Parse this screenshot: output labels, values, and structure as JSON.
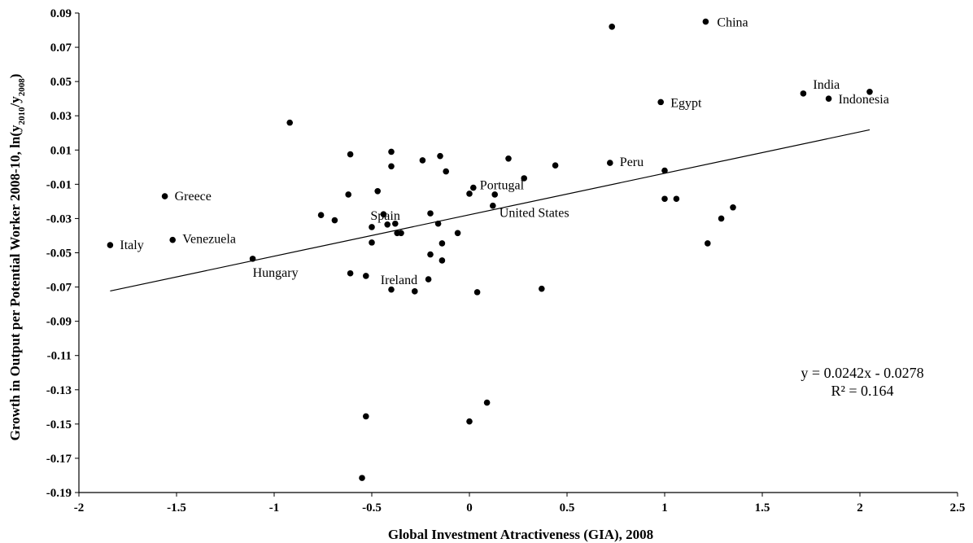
{
  "chart_data": {
    "type": "scatter",
    "title": "",
    "xlabel": "Global Investment Atractiveness (GIA),  2008",
    "ylabel_parts": {
      "main": "Growth in Output per Potential Worker 2008-10, ln(y",
      "sub1": "2010",
      "mid": "/y",
      "sub2": "2008",
      "end": ")"
    },
    "xlim": [
      -2,
      2.5
    ],
    "ylim": [
      -0.19,
      0.09
    ],
    "x_ticks": [
      {
        "value": -2,
        "label": "-2"
      },
      {
        "value": -1.5,
        "label": "-1.5"
      },
      {
        "value": -1,
        "label": "-1"
      },
      {
        "value": -0.5,
        "label": "-0.5"
      },
      {
        "value": 0,
        "label": "0"
      },
      {
        "value": 0.5,
        "label": "0.5"
      },
      {
        "value": 1,
        "label": "1"
      },
      {
        "value": 1.5,
        "label": "1.5"
      },
      {
        "value": 2,
        "label": "2"
      },
      {
        "value": 2.5,
        "label": "2.5"
      }
    ],
    "y_ticks": [
      {
        "value": 0.09,
        "label": "0.09"
      },
      {
        "value": 0.07,
        "label": "0.07"
      },
      {
        "value": 0.05,
        "label": "0.05"
      },
      {
        "value": 0.03,
        "label": "0.03"
      },
      {
        "value": 0.01,
        "label": "0.01"
      },
      {
        "value": -0.01,
        "label": "-0.01"
      },
      {
        "value": -0.03,
        "label": "-0.03"
      },
      {
        "value": -0.05,
        "label": "-0.05"
      },
      {
        "value": -0.07,
        "label": "-0.07"
      },
      {
        "value": -0.09,
        "label": "-0.09"
      },
      {
        "value": -0.11,
        "label": "-0.11"
      },
      {
        "value": -0.13,
        "label": "-0.13"
      },
      {
        "value": -0.15,
        "label": "-0.15"
      },
      {
        "value": -0.17,
        "label": "-0.17"
      },
      {
        "value": -0.19,
        "label": "-0.19"
      }
    ],
    "grid": false,
    "trendline": {
      "slope": 0.0242,
      "intercept": -0.0278,
      "x_range": [
        -1.84,
        2.05
      ],
      "equation": "y = 0.0242x - 0.0278",
      "r_squared": "R² = 0.164"
    },
    "points": [
      {
        "x": 1.21,
        "y": 0.085,
        "label": "China"
      },
      {
        "x": 0.73,
        "y": 0.082,
        "label": ""
      },
      {
        "x": 1.71,
        "y": 0.043,
        "label": "India"
      },
      {
        "x": 2.05,
        "y": 0.044,
        "label": ""
      },
      {
        "x": 1.84,
        "y": 0.04,
        "label": "Indonesia"
      },
      {
        "x": 0.98,
        "y": 0.038,
        "label": "Egypt"
      },
      {
        "x": -0.92,
        "y": 0.026,
        "label": ""
      },
      {
        "x": -0.61,
        "y": 0.0075,
        "label": ""
      },
      {
        "x": -0.4,
        "y": 0.009,
        "label": ""
      },
      {
        "x": -0.15,
        "y": 0.0065,
        "label": ""
      },
      {
        "x": 0.2,
        "y": 0.005,
        "label": ""
      },
      {
        "x": -0.24,
        "y": 0.004,
        "label": ""
      },
      {
        "x": -0.4,
        "y": 0.0005,
        "label": ""
      },
      {
        "x": 0.44,
        "y": 0.001,
        "label": ""
      },
      {
        "x": 0.72,
        "y": 0.0025,
        "label": "Peru"
      },
      {
        "x": -0.12,
        "y": -0.0025,
        "label": ""
      },
      {
        "x": 1.0,
        "y": -0.002,
        "label": ""
      },
      {
        "x": 0.28,
        "y": -0.0065,
        "label": ""
      },
      {
        "x": 0.02,
        "y": -0.012,
        "label": "Portugal"
      },
      {
        "x": -0.47,
        "y": -0.014,
        "label": ""
      },
      {
        "x": -0.62,
        "y": -0.016,
        "label": ""
      },
      {
        "x": -1.56,
        "y": -0.017,
        "label": "Greece"
      },
      {
        "x": 0.0,
        "y": -0.0155,
        "label": ""
      },
      {
        "x": 0.13,
        "y": -0.016,
        "label": ""
      },
      {
        "x": 1.0,
        "y": -0.0185,
        "label": ""
      },
      {
        "x": 1.06,
        "y": -0.0185,
        "label": ""
      },
      {
        "x": 0.12,
        "y": -0.0225,
        "label": "United States"
      },
      {
        "x": 1.35,
        "y": -0.0235,
        "label": ""
      },
      {
        "x": -0.76,
        "y": -0.028,
        "label": ""
      },
      {
        "x": -0.69,
        "y": -0.031,
        "label": ""
      },
      {
        "x": -0.44,
        "y": -0.0275,
        "label": "Spain"
      },
      {
        "x": -0.2,
        "y": -0.027,
        "label": ""
      },
      {
        "x": 1.29,
        "y": -0.03,
        "label": ""
      },
      {
        "x": -0.42,
        "y": -0.0335,
        "label": ""
      },
      {
        "x": -0.38,
        "y": -0.033,
        "label": ""
      },
      {
        "x": -0.5,
        "y": -0.035,
        "label": ""
      },
      {
        "x": -0.16,
        "y": -0.033,
        "label": ""
      },
      {
        "x": -0.37,
        "y": -0.0385,
        "label": ""
      },
      {
        "x": -0.35,
        "y": -0.0385,
        "label": ""
      },
      {
        "x": -0.06,
        "y": -0.0385,
        "label": ""
      },
      {
        "x": -1.84,
        "y": -0.0455,
        "label": "Italy"
      },
      {
        "x": -1.52,
        "y": -0.0425,
        "label": "Venezuela"
      },
      {
        "x": -0.5,
        "y": -0.044,
        "label": ""
      },
      {
        "x": -0.14,
        "y": -0.0445,
        "label": ""
      },
      {
        "x": 1.22,
        "y": -0.0445,
        "label": ""
      },
      {
        "x": -0.2,
        "y": -0.051,
        "label": ""
      },
      {
        "x": -1.11,
        "y": -0.0535,
        "label": "Hungary"
      },
      {
        "x": -0.14,
        "y": -0.0545,
        "label": ""
      },
      {
        "x": -0.61,
        "y": -0.062,
        "label": ""
      },
      {
        "x": -0.53,
        "y": -0.0635,
        "label": "Ireland"
      },
      {
        "x": -0.21,
        "y": -0.0655,
        "label": ""
      },
      {
        "x": -0.4,
        "y": -0.0715,
        "label": ""
      },
      {
        "x": -0.28,
        "y": -0.0725,
        "label": ""
      },
      {
        "x": 0.04,
        "y": -0.073,
        "label": ""
      },
      {
        "x": 0.37,
        "y": -0.071,
        "label": ""
      },
      {
        "x": 0.09,
        "y": -0.1375,
        "label": ""
      },
      {
        "x": -0.53,
        "y": -0.1455,
        "label": ""
      },
      {
        "x": 0.0,
        "y": -0.1485,
        "label": ""
      },
      {
        "x": -0.55,
        "y": -0.1815,
        "label": ""
      }
    ]
  }
}
